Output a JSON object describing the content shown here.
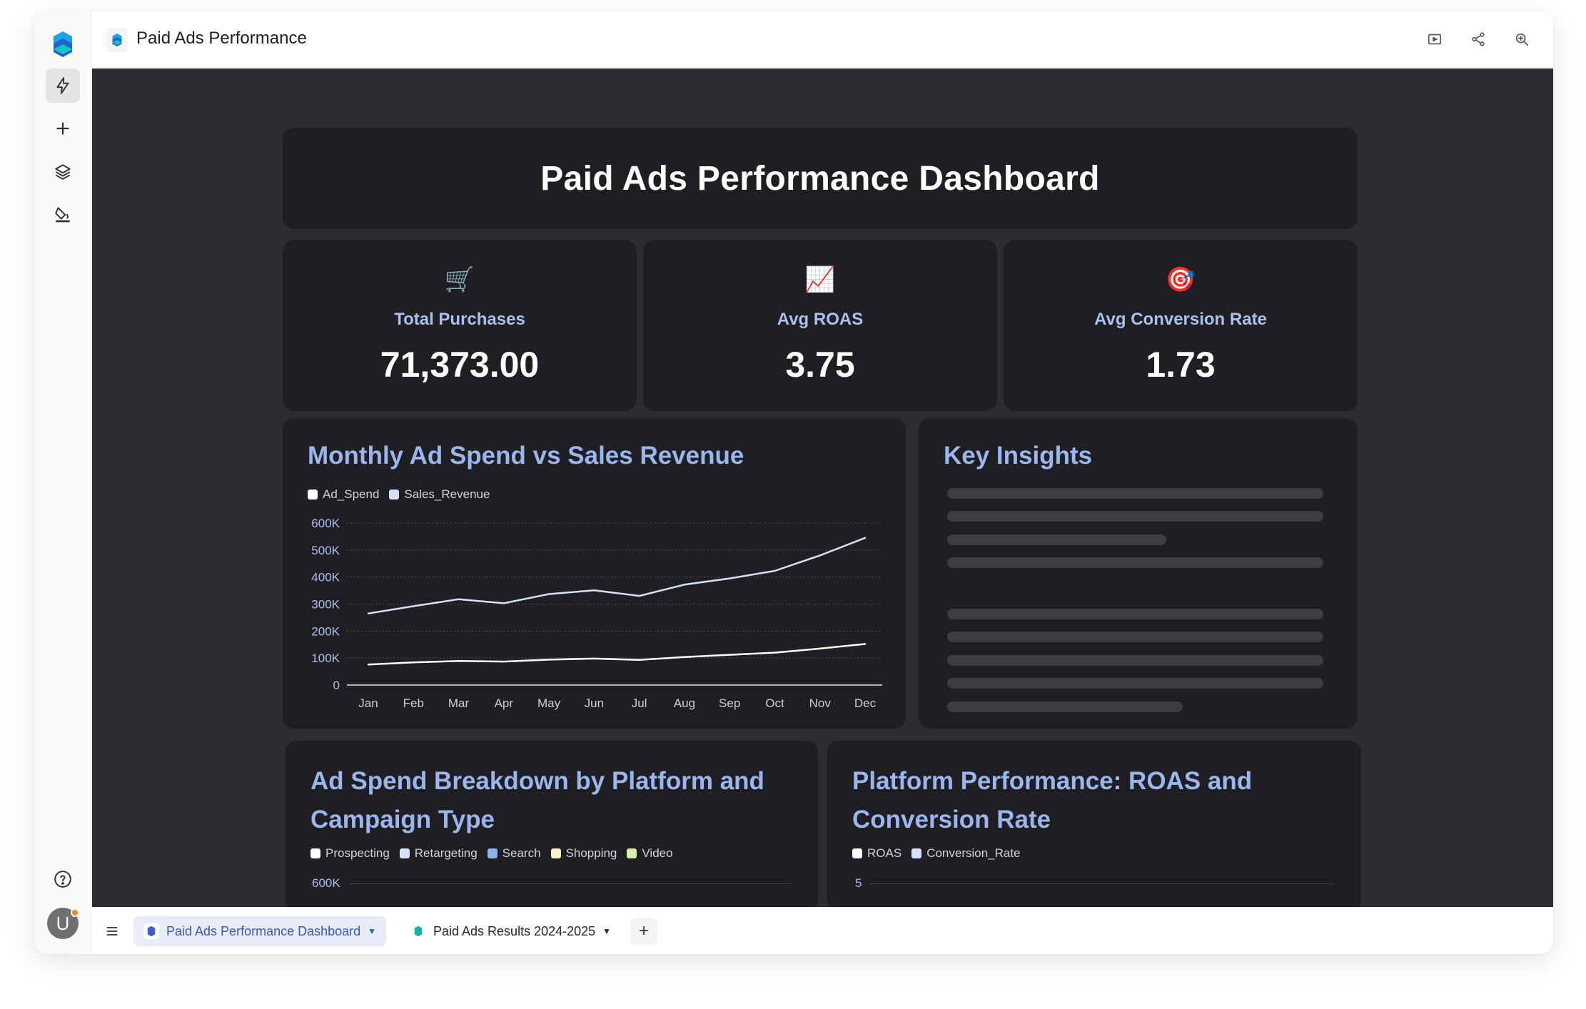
{
  "app": {
    "window_title": "Paid Ads Performance"
  },
  "sidebar": {
    "items": [
      {
        "name": "lightning-icon"
      },
      {
        "name": "plus-icon"
      },
      {
        "name": "layers-icon"
      },
      {
        "name": "paint-bucket-icon"
      }
    ],
    "help_icon": "help-icon",
    "avatar_initial": "U"
  },
  "topbar": {
    "icons": [
      "present-icon",
      "share-icon",
      "zoom-icon",
      "more-icon"
    ]
  },
  "dashboard": {
    "title": "Paid Ads Performance Dashboard",
    "kpis": [
      {
        "icon": "🛒",
        "label": "Total Purchases",
        "value": "71,373.00"
      },
      {
        "icon": "📈",
        "label": "Avg ROAS",
        "value": "3.75"
      },
      {
        "icon": "🎯",
        "label": "Avg Conversion Rate",
        "value": "1.73"
      }
    ],
    "insights": {
      "title": "Key Insights"
    },
    "breakdown": {
      "title_line1": "Ad Spend Breakdown by Platform and",
      "title_line2": "Campaign Type",
      "legend": [
        {
          "name": "Prospecting",
          "color": "#ffffff"
        },
        {
          "name": "Retargeting",
          "color": "#d6e0fb"
        },
        {
          "name": "Search",
          "color": "#8fb0ea"
        },
        {
          "name": "Shopping",
          "color": "#f7f2c8"
        },
        {
          "name": "Video",
          "color": "#d8efa8"
        }
      ],
      "top_tick": "600K"
    },
    "platform": {
      "title_line1": "Platform Performance: ROAS and",
      "title_line2": "Conversion Rate",
      "legend": [
        {
          "name": "ROAS",
          "color": "#ffffff"
        },
        {
          "name": "Conversion_Rate",
          "color": "#d6e0fb"
        }
      ],
      "top_tick": "5"
    }
  },
  "chart_data": {
    "type": "line",
    "title": "Monthly Ad Spend vs Sales Revenue",
    "categories": [
      "Jan",
      "Feb",
      "Mar",
      "Apr",
      "May",
      "Jun",
      "Jul",
      "Aug",
      "Sep",
      "Oct",
      "Nov",
      "Dec"
    ],
    "series": [
      {
        "name": "Ad_Spend",
        "color": "#ffffff",
        "values": [
          76000,
          84000,
          89000,
          87000,
          94000,
          98000,
          93000,
          104000,
          112000,
          120000,
          135000,
          152000
        ]
      },
      {
        "name": "Sales_Revenue",
        "color": "#d6e0fb",
        "values": [
          265000,
          292000,
          318000,
          303000,
          337000,
          351000,
          330000,
          372000,
          395000,
          423000,
          480000,
          545000
        ]
      }
    ],
    "yticks": [
      "600K",
      "500K",
      "400K",
      "300K",
      "200K",
      "100K",
      "0"
    ],
    "ylim": [
      0,
      600000
    ],
    "grid": true,
    "legend_position": "top-left"
  },
  "bottombar": {
    "tabs": [
      {
        "label": "Paid Ads Performance Dashboard",
        "active": true
      },
      {
        "label": "Paid Ads Results 2024-2025",
        "active": false
      }
    ],
    "add_label": "+"
  }
}
